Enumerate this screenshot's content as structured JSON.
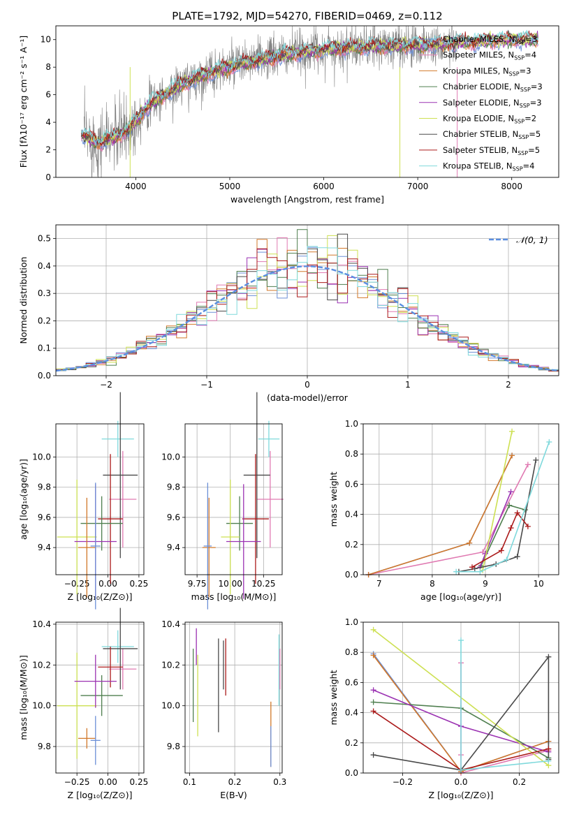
{
  "colors": {
    "chab_miles": "#6b8fd6",
    "salp_miles": "#e07ab2",
    "krou_miles": "#d2782a",
    "chab_elodie": "#4f7f4f",
    "salp_elodie": "#9b32b2",
    "krou_elodie": "#cde052",
    "chab_stelib": "#4a4a4a",
    "salp_stelib": "#ab1a1a",
    "krou_stelib": "#7fd9dc",
    "data": "#808080",
    "gauss": "#5b8fe0",
    "grid": "#b0b0b0"
  },
  "chart_data": [
    {
      "id": "spectrum",
      "type": "line",
      "title": "PLATE=1792, MJD=54270, FIBERID=0469, z=0.112",
      "xlabel": "wavelength [Angstrom, rest frame]",
      "ylabel": "Flux [fλ10⁻¹⁷ erg cm⁻² s⁻¹ A⁻¹]",
      "xlim": [
        3150,
        8500
      ],
      "ylim": [
        0,
        11
      ],
      "grid": false,
      "legend_position": "top-right",
      "xticks": [
        4000,
        5000,
        6000,
        7000,
        8000
      ],
      "yticks": [
        0,
        2,
        4,
        6,
        8,
        10
      ],
      "continuum": [
        [
          3420,
          3.1
        ],
        [
          3600,
          2.5
        ],
        [
          3800,
          3.0
        ],
        [
          3950,
          3.6
        ],
        [
          4100,
          5.0
        ],
        [
          4300,
          6.0
        ],
        [
          4500,
          6.8
        ],
        [
          4800,
          7.6
        ],
        [
          5100,
          8.2
        ],
        [
          5500,
          8.8
        ],
        [
          6000,
          9.3
        ],
        [
          6500,
          9.5
        ],
        [
          7000,
          9.6
        ],
        [
          7500,
          9.8
        ],
        [
          8000,
          10.0
        ],
        [
          8280,
          10.0
        ]
      ],
      "data_range": [
        3450,
        7420
      ],
      "models_range": [
        3420,
        8280
      ],
      "legend": [
        {
          "key": "chab_miles",
          "label": "Chabrier MILES, N",
          "sub": "SSP",
          "n": "=3"
        },
        {
          "key": "salp_miles",
          "label": "Salpeter MILES, N",
          "sub": "SSP",
          "n": "=4"
        },
        {
          "key": "krou_miles",
          "label": "Kroupa MILES, N",
          "sub": "SSP",
          "n": "=3"
        },
        {
          "key": "chab_elodie",
          "label": "Chabrier ELODIE, N",
          "sub": "SSP",
          "n": "=3"
        },
        {
          "key": "salp_elodie",
          "label": "Salpeter ELODIE, N",
          "sub": "SSP",
          "n": "=3"
        },
        {
          "key": "krou_elodie",
          "label": "Kroupa ELODIE, N",
          "sub": "SSP",
          "n": "=2"
        },
        {
          "key": "chab_stelib",
          "label": "Chabrier STELIB, N",
          "sub": "SSP",
          "n": "=5"
        },
        {
          "key": "salp_stelib",
          "label": "Salpeter STELIB, N",
          "sub": "SSP",
          "n": "=5"
        },
        {
          "key": "krou_stelib",
          "label": "Kroupa STELIB, N",
          "sub": "SSP",
          "n": "=4"
        }
      ]
    },
    {
      "id": "residuals",
      "type": "line",
      "xlabel": "(data-model)/error",
      "ylabel": "Normed distribution",
      "xlim": [
        -2.5,
        2.5
      ],
      "ylim": [
        0,
        0.55
      ],
      "grid": true,
      "xticks": [
        -2,
        -1,
        0,
        1,
        2
      ],
      "xticklabels": [
        "−2",
        "−1",
        "0",
        "1",
        "2"
      ],
      "yticks": [
        0,
        0.1,
        0.2,
        0.3,
        0.4,
        0.5
      ],
      "yticklabels": [
        "0.0",
        "0.1",
        "0.2",
        "0.3",
        "0.4",
        "0.5"
      ],
      "bin_width": 0.1,
      "legend_label": "𝒩(0, 1)",
      "legend_position": "top-right"
    },
    {
      "id": "age_z",
      "type": "scatter",
      "xlabel": "Z [log₁₀(Z/Z⊙)]",
      "ylabel": "age  [log₁₀(age/yr)]",
      "xlim": [
        -0.42,
        0.29
      ],
      "ylim": [
        9.22,
        10.22
      ],
      "grid": true,
      "xticks": [
        -0.25,
        0.0,
        0.25
      ],
      "xticklabels": [
        "−0.25",
        "0.00",
        "0.25"
      ],
      "yticks": [
        9.4,
        9.6,
        9.8,
        10.0
      ],
      "yticklabels": [
        "9.4",
        "9.6",
        "9.8",
        "10.0"
      ],
      "points": [
        {
          "key": "krou_stelib",
          "x": 0.08,
          "xe": 0.13,
          "y": 10.12,
          "ye": 0.12
        },
        {
          "key": "salp_miles",
          "x": 0.12,
          "xe": 0.11,
          "y": 9.72,
          "ye": 0.32
        },
        {
          "key": "chab_stelib",
          "x": 0.1,
          "xe": 0.14,
          "y": 9.88,
          "ye": 0.55
        },
        {
          "key": "salp_stelib",
          "x": 0.02,
          "xe": 0.1,
          "y": 9.59,
          "ye": 0.43
        },
        {
          "key": "chab_elodie",
          "x": -0.05,
          "xe": 0.17,
          "y": 9.56,
          "ye": 0.18
        },
        {
          "key": "krou_elodie",
          "x": -0.25,
          "xe": 0.16,
          "y": 9.47,
          "ye": 0.38
        },
        {
          "key": "salp_elodie",
          "x": -0.1,
          "xe": 0.17,
          "y": 9.44,
          "ye": 0.38
        },
        {
          "key": "krou_miles",
          "x": -0.17,
          "xe": 0.07,
          "y": 9.4,
          "ye": 0.33
        },
        {
          "key": "chab_miles",
          "x": -0.1,
          "xe": 0.04,
          "y": 9.41,
          "ye": 0.42
        }
      ]
    },
    {
      "id": "age_mass",
      "type": "scatter",
      "xlabel": "mass [log₁₀(M/M⊙)]",
      "xlim": [
        9.66,
        10.39
      ],
      "ylim": [
        9.22,
        10.22
      ],
      "grid": true,
      "xticks": [
        9.75,
        10.0,
        10.25
      ],
      "xticklabels": [
        "9.75",
        "10.00",
        "10.25"
      ],
      "yticks": [
        9.4,
        9.6,
        9.8,
        10.0
      ],
      "yticklabels": [
        "9.4",
        "9.6",
        "9.8",
        "10.0"
      ],
      "points": [
        {
          "key": "krou_stelib",
          "x": 10.29,
          "xe": 0.08,
          "y": 10.12,
          "ye": 0.12
        },
        {
          "key": "salp_miles",
          "x": 10.3,
          "xe": 0.1,
          "y": 9.72,
          "ye": 0.32
        },
        {
          "key": "chab_stelib",
          "x": 10.2,
          "xe": 0.1,
          "y": 9.88,
          "ye": 0.55
        },
        {
          "key": "salp_stelib",
          "x": 10.19,
          "xe": 0.1,
          "y": 9.59,
          "ye": 0.43
        },
        {
          "key": "chab_elodie",
          "x": 10.07,
          "xe": 0.1,
          "y": 9.56,
          "ye": 0.18
        },
        {
          "key": "krou_elodie",
          "x": 10.0,
          "xe": 0.07,
          "y": 9.47,
          "ye": 0.38
        },
        {
          "key": "salp_elodie",
          "x": 10.1,
          "xe": 0.13,
          "y": 9.44,
          "ye": 0.38
        },
        {
          "key": "krou_miles",
          "x": 9.84,
          "xe": 0.05,
          "y": 9.4,
          "ye": 0.33
        },
        {
          "key": "chab_miles",
          "x": 9.83,
          "xe": 0.03,
          "y": 9.41,
          "ye": 0.42
        }
      ]
    },
    {
      "id": "weight_age",
      "type": "line",
      "xlabel": "age  [log₁₀(age/yr)]",
      "ylabel": "mass weight",
      "xlim": [
        6.7,
        10.38
      ],
      "ylim": [
        0,
        1
      ],
      "grid": true,
      "xticks": [
        7,
        8,
        9,
        10
      ],
      "yticks": [
        0,
        0.2,
        0.4,
        0.6,
        0.8,
        1.0
      ],
      "yticklabels": [
        "0.0",
        "0.2",
        "0.4",
        "0.6",
        "0.8",
        "1.0"
      ],
      "series": [
        {
          "key": "chab_miles",
          "x": [
            6.8,
            8.7,
            9.5
          ],
          "y": [
            0.0,
            0.21,
            0.79
          ]
        },
        {
          "key": "salp_miles",
          "x": [
            6.8,
            8.95,
            9.8
          ],
          "y": [
            0.0,
            0.15,
            0.73
          ]
        },
        {
          "key": "krou_miles",
          "x": [
            6.8,
            8.7,
            9.5
          ],
          "y": [
            0.0,
            0.21,
            0.79
          ]
        },
        {
          "key": "chab_elodie",
          "x": [
            8.92,
            9.45,
            9.75
          ],
          "y": [
            0.06,
            0.46,
            0.43
          ]
        },
        {
          "key": "salp_elodie",
          "x": [
            8.9,
            9.0,
            9.48
          ],
          "y": [
            0.05,
            0.14,
            0.55
          ]
        },
        {
          "key": "krou_elodie",
          "x": [
            8.95,
            9.5
          ],
          "y": [
            0.03,
            0.95
          ]
        },
        {
          "key": "chab_stelib",
          "x": [
            8.5,
            8.8,
            9.2,
            9.6,
            9.95
          ],
          "y": [
            0.02,
            0.04,
            0.07,
            0.12,
            0.76
          ]
        },
        {
          "key": "salp_stelib",
          "x": [
            8.75,
            9.3,
            9.48,
            9.6,
            9.8
          ],
          "y": [
            0.05,
            0.16,
            0.31,
            0.41,
            0.32
          ]
        },
        {
          "key": "krou_stelib",
          "x": [
            8.45,
            8.9,
            9.4,
            10.2
          ],
          "y": [
            0.02,
            0.02,
            0.1,
            0.88
          ]
        }
      ]
    },
    {
      "id": "mass_z",
      "type": "scatter",
      "xlabel": "Z [log₁₀(Z/Z⊙)]",
      "ylabel": "mass [log₁₀(M/M⊙)]",
      "xlim": [
        -0.42,
        0.29
      ],
      "ylim": [
        9.67,
        10.41
      ],
      "grid": true,
      "xticks": [
        -0.25,
        0.0,
        0.25
      ],
      "xticklabels": [
        "−0.25",
        "0.00",
        "0.25"
      ],
      "yticks": [
        9.8,
        10.0,
        10.2,
        10.4
      ],
      "yticklabels": [
        "9.8",
        "10.0",
        "10.2",
        "10.4"
      ],
      "points": [
        {
          "key": "krou_stelib",
          "x": 0.08,
          "xe": 0.13,
          "y": 10.29,
          "ye": 0.08
        },
        {
          "key": "salp_miles",
          "x": 0.12,
          "xe": 0.11,
          "y": 10.18,
          "ye": 0.1
        },
        {
          "key": "chab_stelib",
          "x": 0.1,
          "xe": 0.14,
          "y": 10.28,
          "ye": 0.2
        },
        {
          "key": "salp_stelib",
          "x": 0.02,
          "xe": 0.1,
          "y": 10.19,
          "ye": 0.1
        },
        {
          "key": "chab_elodie",
          "x": -0.05,
          "xe": 0.17,
          "y": 10.05,
          "ye": 0.1
        },
        {
          "key": "krou_elodie",
          "x": -0.25,
          "xe": 0.16,
          "y": 10.0,
          "ye": 0.26
        },
        {
          "key": "salp_elodie",
          "x": -0.1,
          "xe": 0.17,
          "y": 10.12,
          "ye": 0.13
        },
        {
          "key": "krou_miles",
          "x": -0.17,
          "xe": 0.07,
          "y": 9.84,
          "ye": 0.05
        },
        {
          "key": "chab_miles",
          "x": -0.1,
          "xe": 0.04,
          "y": 9.83,
          "ye": 0.12
        }
      ]
    },
    {
      "id": "mass_ebv",
      "type": "scatter",
      "xlabel": "E(B-V)",
      "xlim": [
        0.09,
        0.305
      ],
      "ylim": [
        9.67,
        10.41
      ],
      "grid": true,
      "xticks": [
        0.1,
        0.2,
        0.3
      ],
      "xticklabels": [
        "0.1",
        "0.2",
        "0.3"
      ],
      "yticks": [
        9.8,
        10.0,
        10.2,
        10.4
      ],
      "yticklabels": [
        "9.8",
        "10.0",
        "10.2",
        "10.4"
      ],
      "points": [
        {
          "key": "krou_stelib",
          "x": 0.298,
          "y": 10.175,
          "ye": 0.175
        },
        {
          "key": "salp_miles",
          "x": 0.3,
          "y": 10.18,
          "ye": 0.1
        },
        {
          "key": "chab_stelib",
          "x": 0.164,
          "y": 10.1,
          "ye": 0.23
        },
        {
          "key": "salp_stelib",
          "x": 0.18,
          "y": 10.19,
          "ye": 0.14
        },
        {
          "key": "chab_elodie",
          "x": 0.108,
          "y": 10.1,
          "ye": 0.18
        },
        {
          "key": "krou_elodie",
          "x": 0.118,
          "y": 10.05,
          "ye": 0.2
        },
        {
          "key": "salp_elodie",
          "x": 0.115,
          "y": 10.29,
          "ye": 0.09
        },
        {
          "key": "krou_miles",
          "x": 0.28,
          "y": 9.86,
          "ye": 0.16
        },
        {
          "key": "chab_miles",
          "x": 0.28,
          "y": 9.8,
          "ye": 0.1
        },
        {
          "key": "chab_stelib",
          "x": 0.175,
          "y": 10.2,
          "ye": 0.12
        }
      ]
    },
    {
      "id": "weight_z",
      "type": "line",
      "xlabel": "Z [log₁₀(Z/Z⊙)]",
      "ylabel": "mass weight",
      "xlim": [
        -0.335,
        0.335
      ],
      "ylim": [
        0,
        1
      ],
      "grid": true,
      "xticks": [
        -0.2,
        0.0,
        0.2
      ],
      "xticklabels": [
        "−0.2",
        "0.0",
        "0.2"
      ],
      "yticks": [
        0,
        0.2,
        0.4,
        0.6,
        0.8,
        1.0
      ],
      "yticklabels": [
        "0.0",
        "0.2",
        "0.4",
        "0.6",
        "0.8",
        "1.0"
      ],
      "series": [
        {
          "key": "chab_miles",
          "x": [
            -0.3,
            0.0,
            0.3
          ],
          "y": [
            0.79,
            0.01,
            0.21
          ]
        },
        {
          "key": "salp_miles",
          "x": [
            0.0,
            0.0,
            0.0,
            0.3
          ],
          "y": [
            0.73,
            0.12,
            0.0,
            0.15
          ]
        },
        {
          "key": "krou_miles",
          "x": [
            -0.3,
            0.0,
            0.3
          ],
          "y": [
            0.78,
            0.01,
            0.21
          ]
        },
        {
          "key": "chab_elodie",
          "x": [
            -0.3,
            0.0,
            0.3
          ],
          "y": [
            0.47,
            0.43,
            0.1
          ]
        },
        {
          "key": "salp_elodie",
          "x": [
            -0.3,
            0.0,
            0.3
          ],
          "y": [
            0.55,
            0.31,
            0.14
          ]
        },
        {
          "key": "krou_elodie",
          "x": [
            -0.3,
            0.3
          ],
          "y": [
            0.95,
            0.05
          ]
        },
        {
          "key": "chab_stelib",
          "x": [
            -0.3,
            0.0,
            0.3,
            0.3
          ],
          "y": [
            0.12,
            0.02,
            0.77,
            0.09
          ]
        },
        {
          "key": "salp_stelib",
          "x": [
            -0.3,
            0.0,
            0.3
          ],
          "y": [
            0.41,
            0.02,
            0.16
          ]
        },
        {
          "key": "krou_stelib",
          "x": [
            0.0,
            0.0,
            0.3
          ],
          "y": [
            0.88,
            0.02,
            0.08
          ]
        }
      ]
    }
  ]
}
